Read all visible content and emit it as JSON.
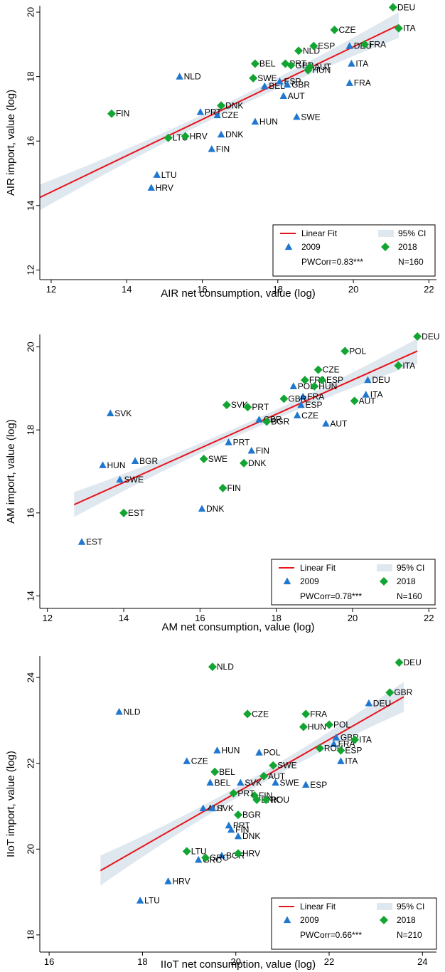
{
  "legend": {
    "fit_label": "Linear Fit",
    "ci_label": "95% CI",
    "year_a_label": "2009",
    "year_b_label": "2018"
  },
  "colors": {
    "fit_line": "#e8141c",
    "ci_band": "#dfe7ef",
    "series_2009": "#1f77d0",
    "series_2018": "#12a532",
    "axis": "#000000"
  },
  "chart_data": [
    {
      "type": "scatter",
      "xlabel": "AIR net consumption, value (log)",
      "ylabel": "AIR import, value (log)",
      "xlim": [
        11.7,
        22.2
      ],
      "ylim": [
        11.7,
        20.2
      ],
      "xticks": [
        12,
        14,
        16,
        18,
        20,
        22
      ],
      "yticks": [
        12,
        14,
        16,
        18,
        20
      ],
      "fit": {
        "x": [
          11.7,
          21.2
        ],
        "y": [
          14.25,
          19.6
        ]
      },
      "ci_halfwidth": 0.4,
      "stats": {
        "corr": "PWCorr=0.83***",
        "n": "N=160"
      },
      "series": [
        {
          "name": "2009",
          "marker": "triangle",
          "points": [
            {
              "label": "NLD",
              "x": 15.4,
              "y": 18.0
            },
            {
              "label": "PRT",
              "x": 15.95,
              "y": 16.9
            },
            {
              "label": "CZE",
              "x": 16.4,
              "y": 16.8
            },
            {
              "label": "DNK",
              "x": 16.5,
              "y": 16.2
            },
            {
              "label": "FIN",
              "x": 16.25,
              "y": 15.75
            },
            {
              "label": "LTU",
              "x": 14.8,
              "y": 14.95
            },
            {
              "label": "HRV",
              "x": 14.65,
              "y": 14.55
            },
            {
              "label": "HUN",
              "x": 17.4,
              "y": 16.6
            },
            {
              "label": "SWE",
              "x": 18.5,
              "y": 16.75
            },
            {
              "label": "AUT",
              "x": 18.15,
              "y": 17.4
            },
            {
              "label": "BEL",
              "x": 17.65,
              "y": 17.7
            },
            {
              "label": "ESP",
              "x": 18.05,
              "y": 17.85
            },
            {
              "label": "GBR",
              "x": 18.25,
              "y": 17.75
            },
            {
              "label": "DEU",
              "x": 19.9,
              "y": 18.95
            },
            {
              "label": "ITA",
              "x": 19.95,
              "y": 18.4
            },
            {
              "label": "FRA",
              "x": 19.9,
              "y": 17.8
            }
          ]
        },
        {
          "name": "2018",
          "marker": "diamond",
          "points": [
            {
              "label": "FIN",
              "x": 13.6,
              "y": 16.85
            },
            {
              "label": "LTU",
              "x": 15.1,
              "y": 16.1
            },
            {
              "label": "HRV",
              "x": 15.55,
              "y": 16.15
            },
            {
              "label": "DNK",
              "x": 16.5,
              "y": 17.1
            },
            {
              "label": "SWE",
              "x": 17.35,
              "y": 17.95
            },
            {
              "label": "BEL",
              "x": 17.4,
              "y": 18.4
            },
            {
              "label": "PRT",
              "x": 18.2,
              "y": 18.4
            },
            {
              "label": "GBR",
              "x": 18.35,
              "y": 18.35
            },
            {
              "label": "NLD",
              "x": 18.55,
              "y": 18.8
            },
            {
              "label": "ESP",
              "x": 18.95,
              "y": 18.95
            },
            {
              "label": "AUT",
              "x": 18.85,
              "y": 18.3
            },
            {
              "label": "HUN",
              "x": 18.8,
              "y": 18.2
            },
            {
              "label": "CZE",
              "x": 19.5,
              "y": 19.45
            },
            {
              "label": "FRA",
              "x": 20.3,
              "y": 19.0
            },
            {
              "label": "DEU",
              "x": 21.05,
              "y": 20.15
            },
            {
              "label": "ITA",
              "x": 21.2,
              "y": 19.5
            }
          ]
        }
      ]
    },
    {
      "type": "scatter",
      "xlabel": "AM net consumption, value (log)",
      "ylabel": "AM import, value (log)",
      "xlim": [
        11.8,
        22.2
      ],
      "ylim": [
        13.7,
        20.3
      ],
      "xticks": [
        12,
        14,
        16,
        18,
        20,
        22
      ],
      "yticks": [
        14,
        16,
        18,
        20
      ],
      "fit": {
        "x": [
          12.7,
          21.7
        ],
        "y": [
          16.2,
          19.9
        ]
      },
      "ci_halfwidth": 0.3,
      "stats": {
        "corr": "PWCorr=0.78***",
        "n": "N=160"
      },
      "series": [
        {
          "name": "2009",
          "marker": "triangle",
          "points": [
            {
              "label": "SVK",
              "x": 13.65,
              "y": 18.4
            },
            {
              "label": "HUN",
              "x": 13.45,
              "y": 17.15
            },
            {
              "label": "BGR",
              "x": 14.3,
              "y": 17.25
            },
            {
              "label": "SWE",
              "x": 13.9,
              "y": 16.8
            },
            {
              "label": "EST",
              "x": 12.9,
              "y": 15.3
            },
            {
              "label": "DNK",
              "x": 16.05,
              "y": 16.1
            },
            {
              "label": "PRT",
              "x": 16.75,
              "y": 17.7
            },
            {
              "label": "FIN",
              "x": 17.35,
              "y": 17.5
            },
            {
              "label": "GBR",
              "x": 17.55,
              "y": 18.25
            },
            {
              "label": "POL",
              "x": 18.45,
              "y": 19.05
            },
            {
              "label": "FRA",
              "x": 18.7,
              "y": 18.8
            },
            {
              "label": "ESP",
              "x": 18.65,
              "y": 18.6
            },
            {
              "label": "CZE",
              "x": 18.55,
              "y": 18.35
            },
            {
              "label": "AUT",
              "x": 19.3,
              "y": 18.15
            },
            {
              "label": "DEU",
              "x": 20.4,
              "y": 19.2
            },
            {
              "label": "ITA",
              "x": 20.35,
              "y": 18.85
            }
          ]
        },
        {
          "name": "2018",
          "marker": "diamond",
          "points": [
            {
              "label": "EST",
              "x": 14.0,
              "y": 16.0
            },
            {
              "label": "SWE",
              "x": 16.1,
              "y": 17.3
            },
            {
              "label": "DNK",
              "x": 17.15,
              "y": 17.2
            },
            {
              "label": "FIN",
              "x": 16.6,
              "y": 16.6
            },
            {
              "label": "SVK",
              "x": 16.7,
              "y": 18.6
            },
            {
              "label": "PRT",
              "x": 17.25,
              "y": 18.55
            },
            {
              "label": "BGR",
              "x": 17.75,
              "y": 18.2
            },
            {
              "label": "GBR",
              "x": 18.2,
              "y": 18.75
            },
            {
              "label": "FRA",
              "x": 18.75,
              "y": 19.2
            },
            {
              "label": "CZE",
              "x": 19.1,
              "y": 19.45
            },
            {
              "label": "ESP",
              "x": 19.2,
              "y": 19.2
            },
            {
              "label": "HUN",
              "x": 19.0,
              "y": 19.05
            },
            {
              "label": "POL",
              "x": 19.8,
              "y": 19.9
            },
            {
              "label": "AUT",
              "x": 20.05,
              "y": 18.7
            },
            {
              "label": "ITA",
              "x": 21.2,
              "y": 19.55
            },
            {
              "label": "DEU",
              "x": 21.7,
              "y": 20.25
            }
          ]
        }
      ]
    },
    {
      "type": "scatter",
      "xlabel": "IIoT net consumption, value (log)",
      "ylabel": "IIoT import, value (log)",
      "xlim": [
        15.8,
        24.3
      ],
      "ylim": [
        17.6,
        24.5
      ],
      "xticks": [
        16,
        18,
        20,
        22,
        24
      ],
      "yticks": [
        18,
        20,
        22,
        24
      ],
      "fit": {
        "x": [
          17.1,
          23.6
        ],
        "y": [
          19.5,
          23.55
        ]
      },
      "ci_halfwidth": 0.35,
      "stats": {
        "corr": "PWCorr=0.66***",
        "n": "N=210"
      },
      "series": [
        {
          "name": "2009",
          "marker": "triangle",
          "points": [
            {
              "label": "NLD",
              "x": 17.5,
              "y": 23.2
            },
            {
              "label": "CZE",
              "x": 18.95,
              "y": 22.05
            },
            {
              "label": "HUN",
              "x": 19.6,
              "y": 22.3
            },
            {
              "label": "POL",
              "x": 20.5,
              "y": 22.25
            },
            {
              "label": "BEL",
              "x": 19.45,
              "y": 21.55
            },
            {
              "label": "SVK",
              "x": 20.1,
              "y": 21.55
            },
            {
              "label": "SWE",
              "x": 20.85,
              "y": 21.55
            },
            {
              "label": "AUT",
              "x": 19.3,
              "y": 20.95
            },
            {
              "label": "SVK2",
              "display": "SVK",
              "x": 19.5,
              "y": 20.95
            },
            {
              "label": "PRT",
              "x": 19.85,
              "y": 20.55
            },
            {
              "label": "FIN",
              "x": 19.9,
              "y": 20.45
            },
            {
              "label": "DNK",
              "x": 20.05,
              "y": 20.3
            },
            {
              "label": "BGR",
              "x": 19.7,
              "y": 19.85
            },
            {
              "label": "GRC",
              "x": 19.2,
              "y": 19.75
            },
            {
              "label": "HRV",
              "x": 18.55,
              "y": 19.25
            },
            {
              "label": "LTU",
              "x": 17.95,
              "y": 18.8
            },
            {
              "label": "ESP",
              "x": 21.5,
              "y": 21.5
            },
            {
              "label": "GBR",
              "x": 22.15,
              "y": 22.6
            },
            {
              "label": "FRA",
              "x": 22.1,
              "y": 22.45
            },
            {
              "label": "ITA",
              "x": 22.25,
              "y": 22.05
            },
            {
              "label": "DEU",
              "x": 22.85,
              "y": 23.4
            }
          ]
        },
        {
          "name": "2018",
          "marker": "diamond",
          "points": [
            {
              "label": "NLD",
              "x": 19.5,
              "y": 24.25
            },
            {
              "label": "CZE",
              "x": 20.25,
              "y": 23.15
            },
            {
              "label": "FRA",
              "x": 21.5,
              "y": 23.15
            },
            {
              "label": "HUN",
              "x": 21.45,
              "y": 22.85
            },
            {
              "label": "POL",
              "x": 22.0,
              "y": 22.9
            },
            {
              "label": "ROU",
              "x": 21.8,
              "y": 22.35
            },
            {
              "label": "ITA",
              "x": 22.55,
              "y": 22.55
            },
            {
              "label": "ESP",
              "x": 22.25,
              "y": 22.3
            },
            {
              "label": "BEL",
              "x": 19.55,
              "y": 21.8
            },
            {
              "label": "SWE",
              "x": 20.8,
              "y": 21.95
            },
            {
              "label": "AUT",
              "x": 20.6,
              "y": 21.7
            },
            {
              "label": "FIN",
              "x": 20.4,
              "y": 21.25
            },
            {
              "label": "PRT",
              "x": 19.95,
              "y": 21.3
            },
            {
              "label": "DNK",
              "x": 20.45,
              "y": 21.15
            },
            {
              "label": "ROU2",
              "display": "ROU",
              "x": 20.65,
              "y": 21.15
            },
            {
              "label": "BGR",
              "x": 20.05,
              "y": 20.8
            },
            {
              "label": "LTU",
              "x": 18.95,
              "y": 19.95
            },
            {
              "label": "GRC",
              "x": 19.35,
              "y": 19.8
            },
            {
              "label": "HRV",
              "x": 20.05,
              "y": 19.9
            },
            {
              "label": "GBR",
              "x": 23.3,
              "y": 23.65
            },
            {
              "label": "DEU",
              "x": 23.5,
              "y": 24.35
            }
          ]
        }
      ]
    }
  ]
}
